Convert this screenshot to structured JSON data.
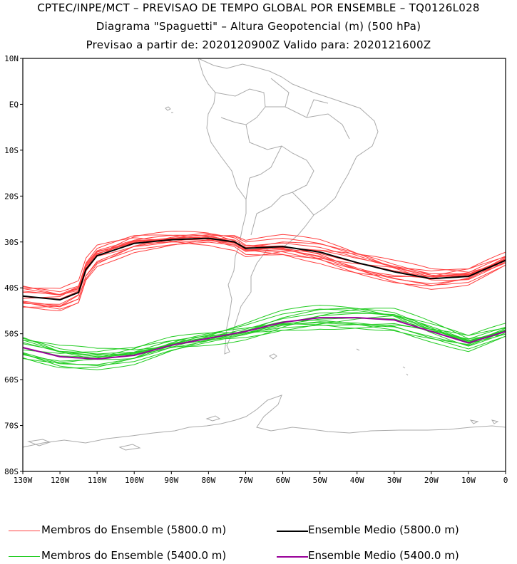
{
  "header": {
    "title_line1": "CPTEC/INPE/MCT – PREVISAO DE TEMPO GLOBAL POR ENSEMBLE – TQ0126L028",
    "title_line2": "Diagrama \"Spaguetti\" – Altura Geopotencial (m) (500 hPa)",
    "title_line3": "Previsao a partir de: 2020120900Z   Valido para: 2020121600Z"
  },
  "map": {
    "lat_labels": [
      "10N",
      "EQ",
      "10S",
      "20S",
      "30S",
      "40S",
      "50S",
      "60S",
      "70S",
      "80S"
    ],
    "lon_labels": [
      "130W",
      "120W",
      "110W",
      "100W",
      "90W",
      "80W",
      "70W",
      "60W",
      "50W",
      "40W",
      "30W",
      "20W",
      "10W",
      "0"
    ],
    "lat_range": [
      -80,
      10
    ],
    "lon_range": [
      -130,
      0
    ],
    "coast_color": "#aaaaaa",
    "series": [
      {
        "name": "Membros do Ensemble (5800.0 m)",
        "color": "#ff4040",
        "kind": "members",
        "center": [
          [
            -130,
            -41.8
          ],
          [
            -120,
            -42.6
          ],
          [
            -115,
            -41
          ],
          [
            -113,
            -36
          ],
          [
            -110,
            -33
          ],
          [
            -100,
            -30.3
          ],
          [
            -90,
            -29.5
          ],
          [
            -80,
            -29.2
          ],
          [
            -73,
            -30
          ],
          [
            -70,
            -31.4
          ],
          [
            -60,
            -31
          ],
          [
            -50,
            -32.2
          ],
          [
            -40,
            -34.5
          ],
          [
            -30,
            -36.5
          ],
          [
            -20,
            -38
          ],
          [
            -10,
            -37.5
          ],
          [
            0,
            -34
          ]
        ]
      },
      {
        "name": "Ensemble Medio (5800.0 m)",
        "color": "#000000",
        "kind": "mean",
        "center": [
          [
            -130,
            -41.8
          ],
          [
            -120,
            -42.6
          ],
          [
            -115,
            -41
          ],
          [
            -113,
            -36
          ],
          [
            -110,
            -33
          ],
          [
            -100,
            -30.3
          ],
          [
            -90,
            -29.5
          ],
          [
            -80,
            -29.2
          ],
          [
            -73,
            -30
          ],
          [
            -70,
            -31.4
          ],
          [
            -60,
            -31
          ],
          [
            -50,
            -32.2
          ],
          [
            -40,
            -34.5
          ],
          [
            -30,
            -36.5
          ],
          [
            -20,
            -38
          ],
          [
            -10,
            -37.5
          ],
          [
            0,
            -34
          ]
        ]
      },
      {
        "name": "Membros do Ensemble (5400.0 m)",
        "color": "#22cc22",
        "kind": "members",
        "center": [
          [
            -130,
            -53
          ],
          [
            -120,
            -55
          ],
          [
            -110,
            -55.5
          ],
          [
            -100,
            -54.7
          ],
          [
            -90,
            -52.5
          ],
          [
            -80,
            -51
          ],
          [
            -70,
            -49.5
          ],
          [
            -60,
            -47.5
          ],
          [
            -50,
            -46.5
          ],
          [
            -40,
            -46.5
          ],
          [
            -30,
            -47
          ],
          [
            -20,
            -49.5
          ],
          [
            -10,
            -52
          ],
          [
            0,
            -49.5
          ]
        ]
      },
      {
        "name": "Ensemble Medio (5400.0 m)",
        "color": "#990099",
        "kind": "mean",
        "center": [
          [
            -130,
            -53
          ],
          [
            -120,
            -55
          ],
          [
            -110,
            -55.5
          ],
          [
            -100,
            -54.7
          ],
          [
            -90,
            -52.5
          ],
          [
            -80,
            -51
          ],
          [
            -70,
            -49.5
          ],
          [
            -60,
            -47.5
          ],
          [
            -50,
            -46.5
          ],
          [
            -40,
            -46.5
          ],
          [
            -30,
            -47
          ],
          [
            -20,
            -49.5
          ],
          [
            -10,
            -52
          ],
          [
            0,
            -49.5
          ]
        ]
      }
    ]
  },
  "legend": {
    "item1": "Membros do Ensemble (5800.0 m)",
    "item2": "Ensemble Medio (5800.0 m)",
    "item3": "Membros do Ensemble (5400.0 m)",
    "item4": "Ensemble Medio (5400.0 m)"
  }
}
